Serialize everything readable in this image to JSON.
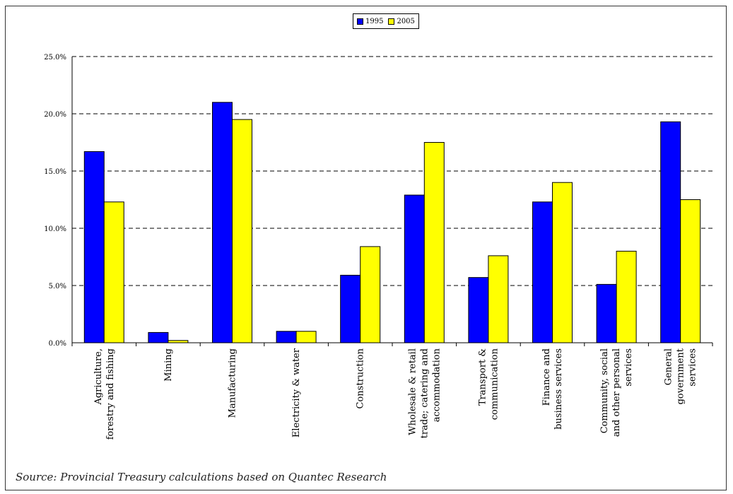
{
  "chart_data": {
    "type": "bar",
    "categories": [
      [
        "Agriculture,",
        "forestry and fishing"
      ],
      [
        "Mining"
      ],
      [
        "Manufacturing"
      ],
      [
        "Electricity & water"
      ],
      [
        "Construction"
      ],
      [
        "Wholesale & retail",
        "trade; catering and",
        "accommodation"
      ],
      [
        "Transport &",
        "communication"
      ],
      [
        "Finance and",
        "business services"
      ],
      [
        "Community, social",
        "and other personal",
        "services"
      ],
      [
        "General",
        "government",
        "services"
      ]
    ],
    "series": [
      {
        "name": "1995",
        "color": "#0000FF",
        "values": [
          16.7,
          0.9,
          21.0,
          1.0,
          5.9,
          12.9,
          5.7,
          12.3,
          5.1,
          19.3
        ]
      },
      {
        "name": "2005",
        "color": "#FFFF00",
        "values": [
          12.3,
          0.2,
          19.5,
          1.0,
          8.4,
          17.5,
          7.6,
          14.0,
          8.0,
          12.5
        ]
      }
    ],
    "ylim": [
      0,
      25
    ],
    "yticks": [
      "0.0%",
      "5.0%",
      "10.0%",
      "15.0%",
      "20.0%",
      "25.0%"
    ],
    "grid": "dashed horizontal",
    "legend_position": "top-center"
  },
  "source": "Source: Provincial Treasury calculations based on Quantec Research"
}
